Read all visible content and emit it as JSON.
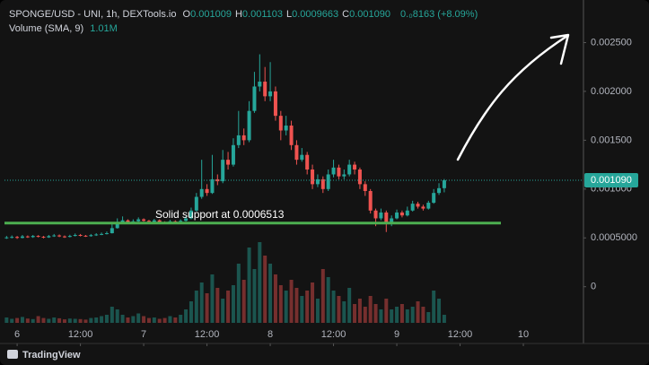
{
  "chart_data": {
    "type": "candlestick",
    "title": "SPONGE/USD - UNI, 1h, DEXTools.io",
    "ohlc_legend": [
      {
        "key": "O",
        "value": "0.001009"
      },
      {
        "key": "H",
        "value": "0.001103"
      },
      {
        "key": "L",
        "value": "0.0009663"
      },
      {
        "key": "C",
        "value": "0.001090"
      }
    ],
    "change": "0.₀8163 (+8.09%)",
    "volume_legend": {
      "name": "Volume (SMA, 9)",
      "value": "1.01M"
    },
    "up_color": "#26a69a",
    "down_color": "#ef5350",
    "x": [
      -2,
      -1,
      0,
      1,
      2,
      3,
      4,
      5,
      6,
      7,
      8,
      9,
      10,
      11,
      12,
      13,
      14,
      15,
      16,
      17,
      18,
      19,
      20,
      21,
      22,
      23,
      24,
      25,
      26,
      27,
      28,
      29,
      30,
      31,
      32,
      33,
      34,
      35,
      36,
      37,
      38,
      39,
      40,
      41,
      42,
      43,
      44,
      45,
      46,
      47,
      48,
      49,
      50,
      51,
      52,
      53,
      54,
      55,
      56,
      57,
      58,
      59,
      60,
      61,
      62,
      63,
      64,
      65,
      66,
      67,
      68,
      69,
      70,
      71,
      72,
      73,
      74,
      75,
      76,
      77,
      78,
      79,
      80,
      81
    ],
    "open": [
      0.0005,
      0.000505,
      0.00051,
      0.0005,
      0.000515,
      0.000508,
      0.00052,
      0.000512,
      0.000505,
      0.000518,
      0.000525,
      0.000515,
      0.00051,
      0.00052,
      0.00053,
      0.000522,
      0.000518,
      0.000528,
      0.000535,
      0.00054,
      0.000548,
      0.0006,
      0.00066,
      0.00068,
      0.00065,
      0.00067,
      0.00069,
      0.000675,
      0.000665,
      0.00068,
      0.00066,
      0.000655,
      0.00067,
      0.000665,
      0.000675,
      0.0007,
      0.00078,
      0.00092,
      0.001,
      0.00096,
      0.0011,
      0.00108,
      0.0013,
      0.00125,
      0.00145,
      0.00155,
      0.0015,
      0.0018,
      0.00205,
      0.0021,
      0.00195,
      0.002,
      0.00175,
      0.0016,
      0.00165,
      0.00145,
      0.0013,
      0.00135,
      0.0012,
      0.00105,
      0.0011,
      0.001,
      0.00115,
      0.00122,
      0.00113,
      0.00115,
      0.00125,
      0.0012,
      0.00105,
      0.00098,
      0.00078,
      0.0007,
      0.00076,
      0.00065,
      0.0007,
      0.00076,
      0.00073,
      0.00078,
      0.00085,
      0.00082,
      0.0008,
      0.00086,
      0.00096,
      0.001009
    ],
    "high": [
      0.00052,
      0.000525,
      0.00052,
      0.00053,
      0.000525,
      0.00053,
      0.000528,
      0.00052,
      0.00053,
      0.00054,
      0.000535,
      0.000525,
      0.000532,
      0.000545,
      0.00054,
      0.00053,
      0.00054,
      0.000548,
      0.000555,
      0.000565,
      0.00064,
      0.0007,
      0.00072,
      0.00069,
      0.00069,
      0.00071,
      0.0007,
      0.000685,
      0.000695,
      0.00069,
      0.00067,
      0.000685,
      0.00068,
      0.00069,
      0.00072,
      0.00081,
      0.00096,
      0.0013,
      0.00105,
      0.00135,
      0.00115,
      0.0014,
      0.00138,
      0.00152,
      0.0018,
      0.00162,
      0.0019,
      0.0022,
      0.00238,
      0.00225,
      0.0023,
      0.00205,
      0.0018,
      0.00175,
      0.0017,
      0.0015,
      0.00142,
      0.00138,
      0.00125,
      0.00115,
      0.00113,
      0.0012,
      0.0013,
      0.00125,
      0.0012,
      0.0013,
      0.00128,
      0.00122,
      0.00108,
      0.001,
      0.0008,
      0.0008,
      0.00078,
      0.00073,
      0.00079,
      0.00078,
      0.00082,
      0.00088,
      0.00087,
      0.00084,
      0.00088,
      0.001,
      0.00106,
      0.001103
    ],
    "low": [
      0.00049,
      0.000495,
      0.00049,
      0.000495,
      0.0005,
      0.0005,
      0.000505,
      0.000495,
      0.0005,
      0.00051,
      0.000508,
      0.0005,
      0.000505,
      0.000515,
      0.000515,
      0.00051,
      0.000512,
      0.00052,
      0.000528,
      0.000535,
      0.000545,
      0.000595,
      0.00065,
      0.00064,
      0.00064,
      0.00066,
      0.000665,
      0.000655,
      0.000655,
      0.00065,
      0.000645,
      0.000648,
      0.000655,
      0.000658,
      0.000668,
      0.00069,
      0.00077,
      0.0009,
      0.00093,
      0.00095,
      0.00104,
      0.00106,
      0.0012,
      0.00123,
      0.00142,
      0.00145,
      0.00148,
      0.00178,
      0.002,
      0.0019,
      0.0019,
      0.0017,
      0.0015,
      0.00155,
      0.0014,
      0.00125,
      0.00128,
      0.00115,
      0.001,
      0.00102,
      0.00096,
      0.00098,
      0.00112,
      0.0011,
      0.0011,
      0.00113,
      0.00115,
      0.001,
      0.00093,
      0.00075,
      0.00062,
      0.00068,
      0.00056,
      0.00062,
      0.00069,
      0.00071,
      0.00072,
      0.00077,
      0.0008,
      0.00078,
      0.00079,
      0.00085,
      0.00094,
      0.0009663
    ],
    "close": [
      0.000505,
      0.00051,
      0.0005,
      0.000515,
      0.000508,
      0.00052,
      0.000512,
      0.000505,
      0.000518,
      0.000525,
      0.000515,
      0.00051,
      0.00052,
      0.00053,
      0.000522,
      0.000518,
      0.000528,
      0.000535,
      0.00054,
      0.000548,
      0.0006,
      0.00066,
      0.00068,
      0.00065,
      0.00067,
      0.00069,
      0.000675,
      0.000665,
      0.00068,
      0.00066,
      0.000655,
      0.00067,
      0.000665,
      0.000675,
      0.0007,
      0.00078,
      0.00092,
      0.001,
      0.00096,
      0.0011,
      0.00108,
      0.0013,
      0.00125,
      0.00145,
      0.00155,
      0.0015,
      0.0018,
      0.00205,
      0.0021,
      0.00195,
      0.002,
      0.00175,
      0.0016,
      0.00165,
      0.00145,
      0.0013,
      0.00135,
      0.0012,
      0.00105,
      0.0011,
      0.001,
      0.00115,
      0.00122,
      0.00113,
      0.00115,
      0.00125,
      0.0012,
      0.00105,
      0.00098,
      0.00078,
      0.0007,
      0.00076,
      0.00065,
      0.0007,
      0.00076,
      0.00073,
      0.00078,
      0.00085,
      0.00082,
      0.0008,
      0.00086,
      0.00096,
      0.001009,
      0.00109
    ],
    "volume": [
      200000,
      150000,
      180000,
      220000,
      160000,
      140000,
      250000,
      180000,
      150000,
      200000,
      170000,
      130000,
      160000,
      150000,
      140000,
      120000,
      180000,
      200000,
      250000,
      300000,
      600000,
      500000,
      300000,
      200000,
      250000,
      350000,
      250000,
      180000,
      200000,
      150000,
      180000,
      250000,
      200000,
      300000,
      500000,
      800000,
      1200000,
      1500000,
      1100000,
      1800000,
      1300000,
      900000,
      1200000,
      1400000,
      2200000,
      1600000,
      2800000,
      2000000,
      3000000,
      2500000,
      2200000,
      1800000,
      1400000,
      1200000,
      1600000,
      1300000,
      1000000,
      1200000,
      1500000,
      900000,
      2000000,
      1700000,
      1200000,
      1000000,
      800000,
      1300000,
      700000,
      900000,
      600000,
      1000000,
      700000,
      500000,
      900000,
      500000,
      600000,
      700000,
      500000,
      600000,
      800000,
      600000,
      400000,
      1200000,
      900000,
      300000
    ],
    "xlim": [
      -2.4,
      107.4
    ],
    "xticks": [
      {
        "value": 0,
        "label": "6"
      },
      {
        "value": 12,
        "label": "12:00"
      },
      {
        "value": 24,
        "label": "7"
      },
      {
        "value": 36,
        "label": "12:00"
      },
      {
        "value": 48,
        "label": "8"
      },
      {
        "value": 60,
        "label": "12:00"
      },
      {
        "value": 72,
        "label": "9"
      },
      {
        "value": 84,
        "label": "12:00"
      },
      {
        "value": 96,
        "label": "10"
      }
    ],
    "ylim": [
      -0.00037,
      0.00289
    ],
    "yticks": [
      0,
      {
        "value": 0.0005,
        "label": "0.0005000"
      },
      {
        "value": 0.001,
        "label": "0.001000"
      },
      {
        "value": 0.0015,
        "label": "0.001500"
      },
      {
        "value": 0.002,
        "label": "0.002000"
      },
      {
        "value": 0.0025,
        "label": "0.002500"
      }
    ],
    "grid": false,
    "last_price": {
      "value": 0.00109,
      "label": "0.001090"
    },
    "support": {
      "value": 0.0006513,
      "label": "Solid support at 0.0006513",
      "color": "#4caf50"
    },
    "footer": "TradingView"
  }
}
